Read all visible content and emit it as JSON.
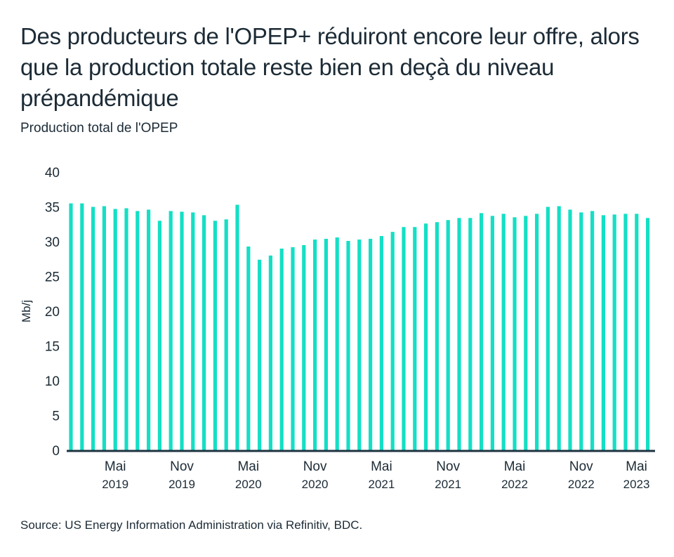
{
  "title": "Des producteurs de l'OPEP+ réduiront encore leur offre, alors que la production totale reste bien en deçà du niveau prépandémique",
  "subtitle": "Production total de l'OPEP",
  "source": "Source: US Energy Information Administration via Refinitiv, BDC.",
  "colors": {
    "bar": "#14dfc5",
    "axis": "#1e3340",
    "text": "#1c2b36"
  },
  "chart_data": {
    "type": "bar",
    "title": "Production total de l'OPEP",
    "ylabel": "Mb/j",
    "xlabel": "",
    "ylim": [
      0,
      40
    ],
    "yticks": [
      0,
      5,
      10,
      15,
      20,
      25,
      30,
      35,
      40
    ],
    "grid": false,
    "categories": [
      "2019-01",
      "2019-02",
      "2019-03",
      "2019-04",
      "2019-05",
      "2019-06",
      "2019-07",
      "2019-08",
      "2019-09",
      "2019-10",
      "2019-11",
      "2019-12",
      "2020-01",
      "2020-02",
      "2020-03",
      "2020-04",
      "2020-05",
      "2020-06",
      "2020-07",
      "2020-08",
      "2020-09",
      "2020-10",
      "2020-11",
      "2020-12",
      "2021-01",
      "2021-02",
      "2021-03",
      "2021-04",
      "2021-05",
      "2021-06",
      "2021-07",
      "2021-08",
      "2021-09",
      "2021-10",
      "2021-11",
      "2021-12",
      "2022-01",
      "2022-02",
      "2022-03",
      "2022-04",
      "2022-05",
      "2022-06",
      "2022-07",
      "2022-08",
      "2022-09",
      "2022-10",
      "2022-11",
      "2022-12",
      "2023-01",
      "2023-02",
      "2023-03",
      "2023-04",
      "2023-05"
    ],
    "values": [
      35.5,
      35.5,
      35.0,
      35.1,
      34.7,
      34.8,
      34.4,
      34.6,
      33.0,
      34.4,
      34.3,
      34.2,
      33.8,
      33.0,
      33.2,
      35.3,
      29.3,
      27.4,
      28.0,
      29.0,
      29.2,
      29.5,
      30.3,
      30.4,
      30.6,
      30.1,
      30.3,
      30.4,
      30.8,
      31.4,
      32.1,
      32.1,
      32.6,
      32.8,
      33.1,
      33.4,
      33.4,
      34.1,
      33.7,
      34.0,
      33.5,
      33.7,
      34.0,
      35.0,
      35.1,
      34.6,
      34.2,
      34.4,
      33.8,
      33.9,
      34.0,
      34.0,
      33.4
    ],
    "xticks": [
      {
        "index": 4,
        "month": "Mai",
        "year": "2019"
      },
      {
        "index": 10,
        "month": "Nov",
        "year": "2019"
      },
      {
        "index": 16,
        "month": "Mai",
        "year": "2020"
      },
      {
        "index": 22,
        "month": "Nov",
        "year": "2020"
      },
      {
        "index": 28,
        "month": "Mai",
        "year": "2021"
      },
      {
        "index": 34,
        "month": "Nov",
        "year": "2021"
      },
      {
        "index": 40,
        "month": "Mai",
        "year": "2022"
      },
      {
        "index": 46,
        "month": "Nov",
        "year": "2022"
      },
      {
        "index": 52,
        "month": "Mai",
        "year": "2023"
      }
    ]
  }
}
